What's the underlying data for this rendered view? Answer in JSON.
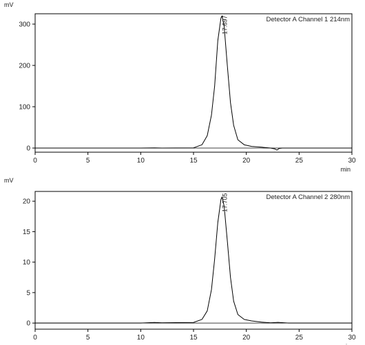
{
  "chart_data": [
    {
      "type": "line",
      "yunit": "mV",
      "xunit": "min",
      "legend": "Detector A Channel 1 214nm",
      "peak_label": "17.697",
      "peak_x": 17.697,
      "xlim": [
        0,
        30
      ],
      "ylim": [
        -10,
        325
      ],
      "xticks": [
        0,
        5,
        10,
        15,
        20,
        25,
        30
      ],
      "yticks": [
        0,
        100,
        200,
        300
      ],
      "series": [
        {
          "x": [
            0,
            5,
            10,
            11.3,
            12,
            15,
            15.8,
            16.3,
            16.7,
            17.0,
            17.3,
            17.6,
            17.7,
            17.9,
            18.2,
            18.5,
            18.8,
            19.2,
            19.8,
            20.5,
            21.5,
            22.3,
            22.7,
            22.9,
            23.1,
            23.4,
            24,
            25,
            30
          ],
          "y": [
            0,
            0,
            0,
            0.5,
            0,
            0.5,
            8,
            30,
            80,
            150,
            260,
            315,
            320,
            295,
            200,
            110,
            55,
            20,
            8,
            4,
            2,
            0,
            -2,
            -5,
            -1,
            0,
            0,
            0,
            0
          ]
        }
      ]
    },
    {
      "type": "line",
      "yunit": "mV",
      "xunit": "min",
      "legend": "Detector A Channel 2 280nm",
      "peak_label": "17.705",
      "peak_x": 17.705,
      "xlim": [
        0,
        30
      ],
      "ylim": [
        -1,
        21.6
      ],
      "xticks": [
        0,
        5,
        10,
        15,
        20,
        25,
        30
      ],
      "yticks": [
        0,
        5,
        10,
        15,
        20
      ],
      "series": [
        {
          "x": [
            0,
            5,
            10,
            11.3,
            12,
            15,
            15.8,
            16.3,
            16.7,
            17.0,
            17.3,
            17.6,
            17.7,
            17.9,
            18.2,
            18.5,
            18.8,
            19.2,
            19.8,
            20.5,
            21.5,
            22.3,
            23.0,
            24,
            25,
            30
          ],
          "y": [
            0,
            0,
            0,
            0.1,
            0.05,
            0.1,
            0.6,
            2,
            5.5,
            10.5,
            16.5,
            20.3,
            20.7,
            19.2,
            13.5,
            7.5,
            3.6,
            1.4,
            0.6,
            0.35,
            0.15,
            0.05,
            0.12,
            0,
            0,
            0
          ]
        }
      ]
    }
  ]
}
